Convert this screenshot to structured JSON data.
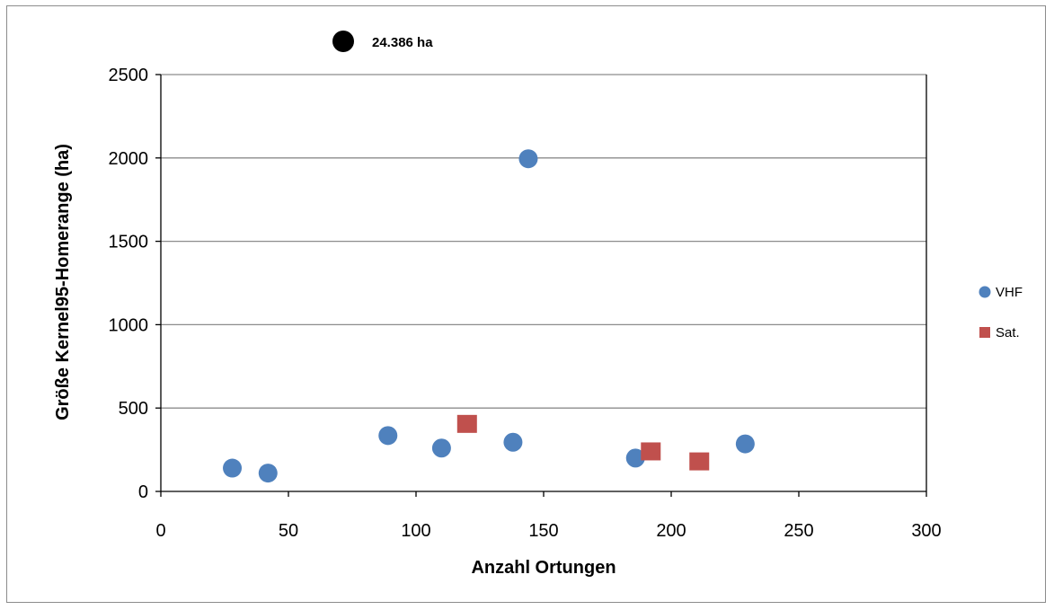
{
  "chart_data": {
    "type": "scatter",
    "title": "",
    "xlabel": "Anzahl Ortungen",
    "ylabel": "Größe Kernel95-Homerange (ha)",
    "xlim": [
      0,
      300
    ],
    "ylim": [
      0,
      2500
    ],
    "xticks": [
      0,
      50,
      100,
      150,
      200,
      250,
      300
    ],
    "yticks": [
      0,
      500,
      1000,
      1500,
      2000,
      2500
    ],
    "x_tick_labels": [
      "0",
      "50",
      "100",
      "150",
      "200",
      "250",
      "300"
    ],
    "y_tick_labels": [
      "0",
      "500",
      "1000",
      "1500",
      "2000",
      "2500"
    ],
    "grid": "horizontal",
    "legend_position": "right",
    "series": [
      {
        "name": "VHF",
        "marker": "circle",
        "color": "#4F81BD",
        "points": [
          {
            "x": 28,
            "y": 140
          },
          {
            "x": 42,
            "y": 110
          },
          {
            "x": 89,
            "y": 335
          },
          {
            "x": 110,
            "y": 260
          },
          {
            "x": 138,
            "y": 295
          },
          {
            "x": 144,
            "y": 1995
          },
          {
            "x": 186,
            "y": 200
          },
          {
            "x": 229,
            "y": 285
          }
        ]
      },
      {
        "name": "Sat.",
        "marker": "square",
        "color": "#C0504D",
        "points": [
          {
            "x": 120,
            "y": 405
          },
          {
            "x": 192,
            "y": 240
          },
          {
            "x": 211,
            "y": 180
          }
        ]
      }
    ],
    "annotation": {
      "text": "24.386 ha",
      "marker": "circle",
      "color": "#000000"
    }
  }
}
